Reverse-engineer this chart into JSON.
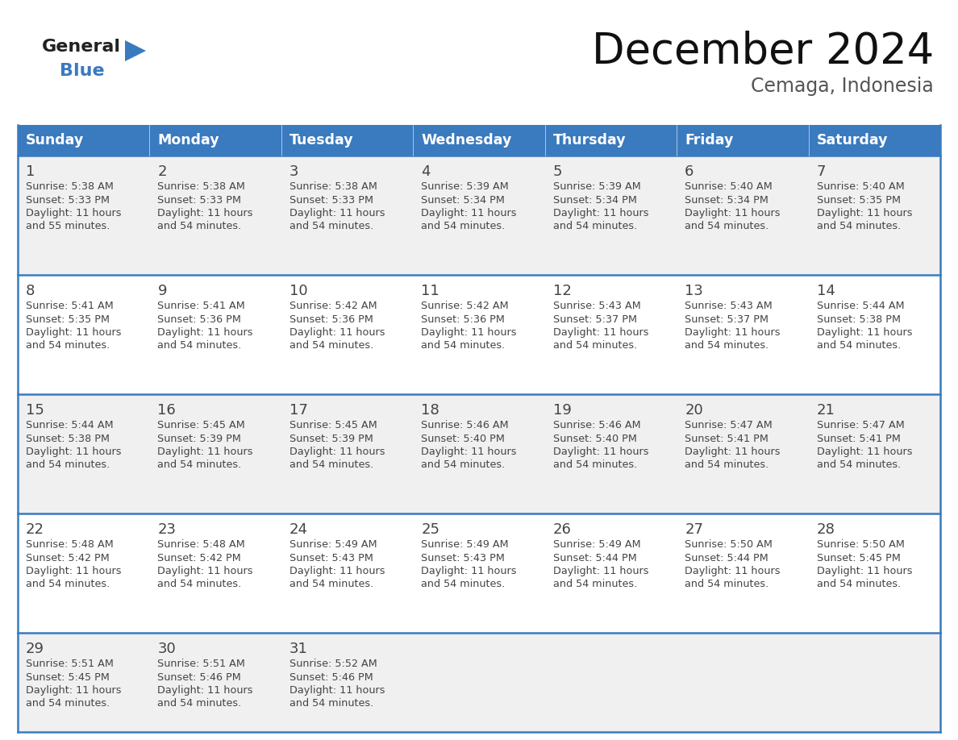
{
  "title": "December 2024",
  "subtitle": "Cemaga, Indonesia",
  "days_of_week": [
    "Sunday",
    "Monday",
    "Tuesday",
    "Wednesday",
    "Thursday",
    "Friday",
    "Saturday"
  ],
  "header_bg": "#3a7abf",
  "header_text_color": "#ffffff",
  "cell_bg_odd": "#f0f0f0",
  "cell_bg_even": "#ffffff",
  "cell_border_color": "#3a7abf",
  "day_number_color": "#444444",
  "text_color": "#444444",
  "calendar_data": [
    [
      {
        "day": 1,
        "sunrise": "5:38 AM",
        "sunset": "5:33 PM",
        "daylight": "11 hours and 55 minutes"
      },
      {
        "day": 2,
        "sunrise": "5:38 AM",
        "sunset": "5:33 PM",
        "daylight": "11 hours and 54 minutes"
      },
      {
        "day": 3,
        "sunrise": "5:38 AM",
        "sunset": "5:33 PM",
        "daylight": "11 hours and 54 minutes"
      },
      {
        "day": 4,
        "sunrise": "5:39 AM",
        "sunset": "5:34 PM",
        "daylight": "11 hours and 54 minutes"
      },
      {
        "day": 5,
        "sunrise": "5:39 AM",
        "sunset": "5:34 PM",
        "daylight": "11 hours and 54 minutes"
      },
      {
        "day": 6,
        "sunrise": "5:40 AM",
        "sunset": "5:34 PM",
        "daylight": "11 hours and 54 minutes"
      },
      {
        "day": 7,
        "sunrise": "5:40 AM",
        "sunset": "5:35 PM",
        "daylight": "11 hours and 54 minutes"
      }
    ],
    [
      {
        "day": 8,
        "sunrise": "5:41 AM",
        "sunset": "5:35 PM",
        "daylight": "11 hours and 54 minutes"
      },
      {
        "day": 9,
        "sunrise": "5:41 AM",
        "sunset": "5:36 PM",
        "daylight": "11 hours and 54 minutes"
      },
      {
        "day": 10,
        "sunrise": "5:42 AM",
        "sunset": "5:36 PM",
        "daylight": "11 hours and 54 minutes"
      },
      {
        "day": 11,
        "sunrise": "5:42 AM",
        "sunset": "5:36 PM",
        "daylight": "11 hours and 54 minutes"
      },
      {
        "day": 12,
        "sunrise": "5:43 AM",
        "sunset": "5:37 PM",
        "daylight": "11 hours and 54 minutes"
      },
      {
        "day": 13,
        "sunrise": "5:43 AM",
        "sunset": "5:37 PM",
        "daylight": "11 hours and 54 minutes"
      },
      {
        "day": 14,
        "sunrise": "5:44 AM",
        "sunset": "5:38 PM",
        "daylight": "11 hours and 54 minutes"
      }
    ],
    [
      {
        "day": 15,
        "sunrise": "5:44 AM",
        "sunset": "5:38 PM",
        "daylight": "11 hours and 54 minutes"
      },
      {
        "day": 16,
        "sunrise": "5:45 AM",
        "sunset": "5:39 PM",
        "daylight": "11 hours and 54 minutes"
      },
      {
        "day": 17,
        "sunrise": "5:45 AM",
        "sunset": "5:39 PM",
        "daylight": "11 hours and 54 minutes"
      },
      {
        "day": 18,
        "sunrise": "5:46 AM",
        "sunset": "5:40 PM",
        "daylight": "11 hours and 54 minutes"
      },
      {
        "day": 19,
        "sunrise": "5:46 AM",
        "sunset": "5:40 PM",
        "daylight": "11 hours and 54 minutes"
      },
      {
        "day": 20,
        "sunrise": "5:47 AM",
        "sunset": "5:41 PM",
        "daylight": "11 hours and 54 minutes"
      },
      {
        "day": 21,
        "sunrise": "5:47 AM",
        "sunset": "5:41 PM",
        "daylight": "11 hours and 54 minutes"
      }
    ],
    [
      {
        "day": 22,
        "sunrise": "5:48 AM",
        "sunset": "5:42 PM",
        "daylight": "11 hours and 54 minutes"
      },
      {
        "day": 23,
        "sunrise": "5:48 AM",
        "sunset": "5:42 PM",
        "daylight": "11 hours and 54 minutes"
      },
      {
        "day": 24,
        "sunrise": "5:49 AM",
        "sunset": "5:43 PM",
        "daylight": "11 hours and 54 minutes"
      },
      {
        "day": 25,
        "sunrise": "5:49 AM",
        "sunset": "5:43 PM",
        "daylight": "11 hours and 54 minutes"
      },
      {
        "day": 26,
        "sunrise": "5:49 AM",
        "sunset": "5:44 PM",
        "daylight": "11 hours and 54 minutes"
      },
      {
        "day": 27,
        "sunrise": "5:50 AM",
        "sunset": "5:44 PM",
        "daylight": "11 hours and 54 minutes"
      },
      {
        "day": 28,
        "sunrise": "5:50 AM",
        "sunset": "5:45 PM",
        "daylight": "11 hours and 54 minutes"
      }
    ],
    [
      {
        "day": 29,
        "sunrise": "5:51 AM",
        "sunset": "5:45 PM",
        "daylight": "11 hours and 54 minutes"
      },
      {
        "day": 30,
        "sunrise": "5:51 AM",
        "sunset": "5:46 PM",
        "daylight": "11 hours and 54 minutes"
      },
      {
        "day": 31,
        "sunrise": "5:52 AM",
        "sunset": "5:46 PM",
        "daylight": "11 hours and 54 minutes"
      },
      null,
      null,
      null,
      null
    ]
  ],
  "fig_width": 11.88,
  "fig_height": 9.18
}
